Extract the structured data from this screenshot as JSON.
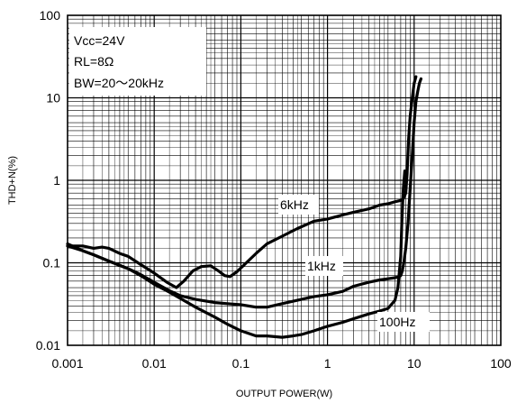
{
  "chart_data": {
    "type": "line",
    "xlabel": "OUTPUT POWER(W)",
    "ylabel": "THD+N(%)",
    "xscale": "log",
    "yscale": "log",
    "xlim": [
      0.001,
      100
    ],
    "ylim": [
      0.01,
      100
    ],
    "grid": true,
    "x_tick_labels": [
      "0.001",
      "0.01",
      "0.1",
      "1",
      "10",
      "100"
    ],
    "y_tick_labels": [
      "0.01",
      "0.1",
      "1",
      "10",
      "100"
    ],
    "x_ticks": [
      0.001,
      0.01,
      0.1,
      1,
      10,
      100
    ],
    "y_ticks": [
      0.01,
      0.1,
      1,
      10,
      100
    ],
    "annotations": [
      "Vcc=24V",
      "RL=8Ω",
      "BW=20～20kHz"
    ],
    "series": [
      {
        "name": "6kHz",
        "x": [
          0.001,
          0.0015,
          0.002,
          0.0025,
          0.003,
          0.004,
          0.005,
          0.007,
          0.01,
          0.014,
          0.018,
          0.022,
          0.028,
          0.035,
          0.045,
          0.055,
          0.065,
          0.075,
          0.09,
          0.11,
          0.15,
          0.2,
          0.3,
          0.45,
          0.7,
          1.0,
          1.5,
          2.0,
          3.0,
          4.0,
          5.0,
          6.0,
          7.0,
          7.5,
          8.0,
          8.3,
          8.6,
          9.0,
          9.5,
          10.0,
          10.5
        ],
        "y": [
          0.16,
          0.16,
          0.15,
          0.155,
          0.15,
          0.13,
          0.12,
          0.095,
          0.075,
          0.058,
          0.05,
          0.06,
          0.08,
          0.09,
          0.092,
          0.08,
          0.07,
          0.068,
          0.078,
          0.095,
          0.13,
          0.17,
          0.21,
          0.26,
          0.32,
          0.34,
          0.38,
          0.41,
          0.45,
          0.5,
          0.52,
          0.55,
          0.57,
          0.6,
          0.7,
          1.2,
          3.0,
          6.0,
          10.0,
          15.0,
          18.0
        ]
      },
      {
        "name": "1kHz",
        "x": [
          0.001,
          0.0015,
          0.002,
          0.003,
          0.005,
          0.007,
          0.01,
          0.015,
          0.02,
          0.03,
          0.05,
          0.07,
          0.1,
          0.15,
          0.2,
          0.3,
          0.5,
          0.7,
          1.0,
          1.5,
          2.0,
          3.0,
          4.0,
          5.0,
          6.0,
          6.5,
          7.0,
          7.3,
          7.6,
          8.0,
          8.5,
          9.0,
          9.5,
          10.0,
          10.5,
          11.0,
          11.5,
          12.0
        ],
        "y": [
          0.17,
          0.14,
          0.125,
          0.105,
          0.085,
          0.072,
          0.058,
          0.046,
          0.04,
          0.036,
          0.033,
          0.032,
          0.031,
          0.029,
          0.029,
          0.032,
          0.036,
          0.039,
          0.041,
          0.045,
          0.052,
          0.058,
          0.062,
          0.064,
          0.066,
          0.067,
          0.07,
          0.08,
          0.1,
          0.15,
          0.3,
          0.8,
          2.0,
          5.0,
          9.0,
          12.0,
          15.0,
          17.0
        ]
      },
      {
        "name": "100Hz",
        "x": [
          0.001,
          0.0015,
          0.002,
          0.003,
          0.005,
          0.007,
          0.01,
          0.015,
          0.02,
          0.03,
          0.05,
          0.07,
          0.1,
          0.15,
          0.2,
          0.3,
          0.4,
          0.5,
          0.7,
          1.0,
          1.5,
          2.0,
          3.0,
          4.0,
          5.0,
          6.0,
          6.5,
          7.0,
          7.2,
          7.5,
          7.8
        ],
        "y": [
          0.16,
          0.14,
          0.125,
          0.105,
          0.085,
          0.07,
          0.055,
          0.044,
          0.037,
          0.029,
          0.022,
          0.018,
          0.015,
          0.013,
          0.013,
          0.0125,
          0.013,
          0.0135,
          0.015,
          0.017,
          0.019,
          0.021,
          0.024,
          0.026,
          0.028,
          0.035,
          0.05,
          0.12,
          0.3,
          0.8,
          1.3
        ]
      }
    ]
  }
}
